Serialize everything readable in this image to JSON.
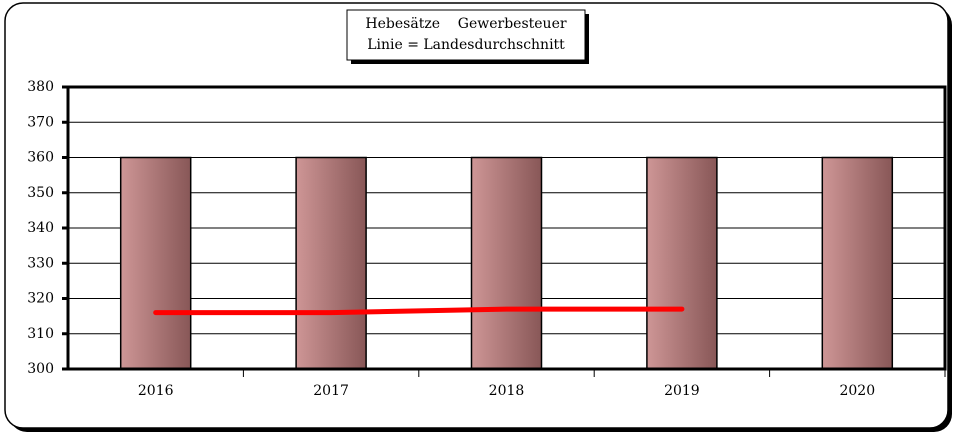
{
  "chart_data": {
    "type": "bar",
    "title": [
      "Hebesätze    Gewerbesteuer",
      "Linie = Landesdurchschnitt"
    ],
    "categories": [
      "2016",
      "2017",
      "2018",
      "2019",
      "2020"
    ],
    "series": [
      {
        "name": "Hebesatz",
        "type": "bar",
        "color": "#c27c7c",
        "values": [
          360,
          360,
          360,
          360,
          360
        ]
      },
      {
        "name": "Landesdurchschnitt",
        "type": "line",
        "color": "#ff0000",
        "values": [
          316,
          316,
          317,
          317,
          null
        ]
      }
    ],
    "ylim": [
      300,
      380
    ],
    "yticks": [
      300,
      310,
      320,
      330,
      340,
      350,
      360,
      370,
      380
    ],
    "grid": true
  }
}
